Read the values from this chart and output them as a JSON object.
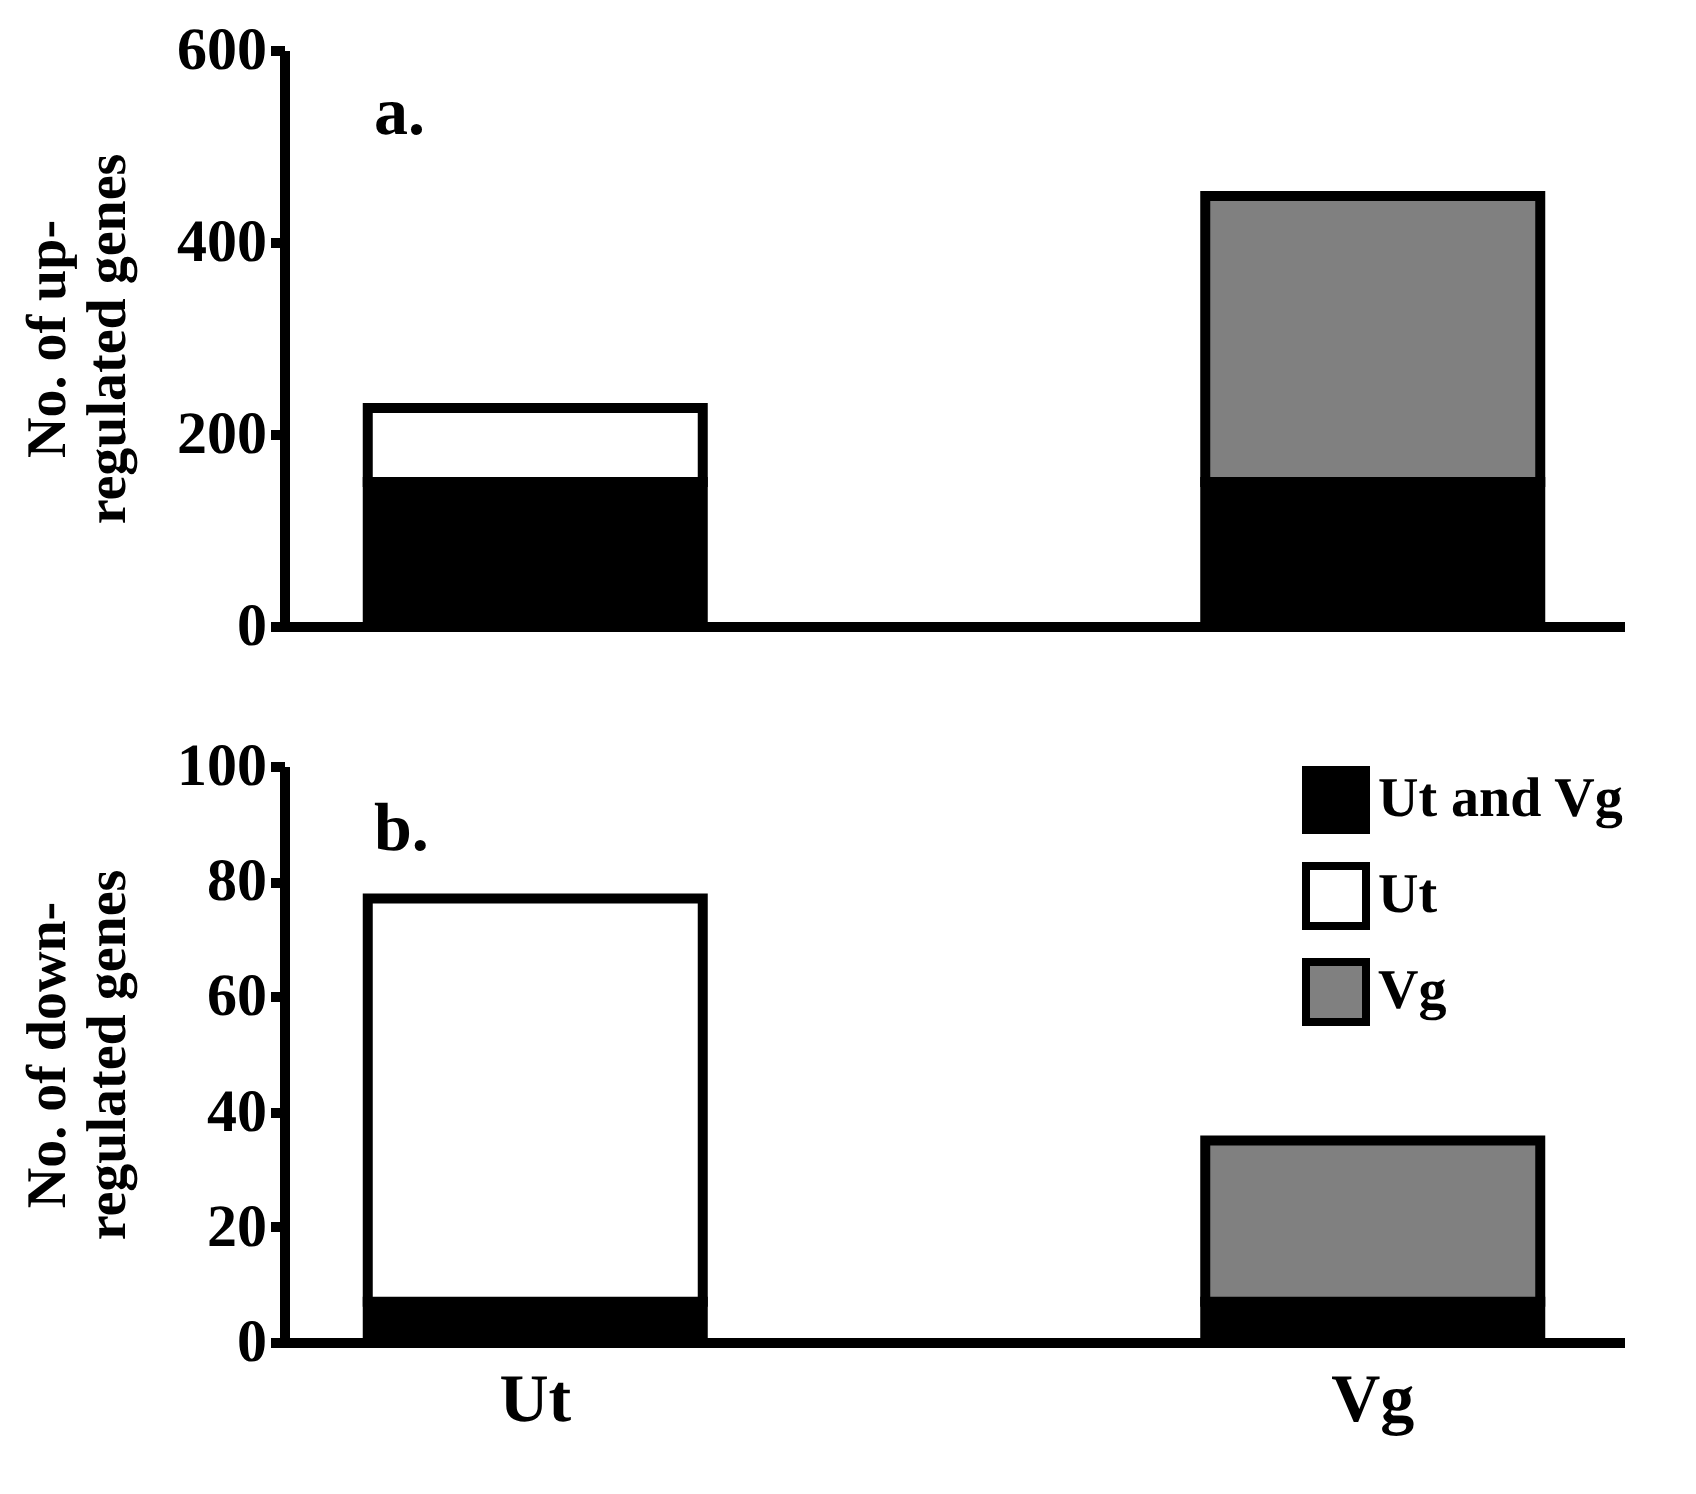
{
  "chart_data": [
    {
      "type": "bar",
      "stacked": true,
      "ylabel": "No. of up-\nregulated  genes",
      "annotations": [
        "a."
      ],
      "categories": [
        null,
        null
      ],
      "series": [
        {
          "color": "#000000",
          "values": [
            150,
            150
          ]
        },
        {
          "color": "#ffffff",
          "values": [
            77,
            null
          ]
        },
        {
          "color": "#808080",
          "values": [
            null,
            298
          ]
        }
      ],
      "ylim": [
        0,
        600
      ],
      "yticks": [
        0,
        200,
        400,
        600
      ],
      "grid": false,
      "legend": false,
      "tick_labels": "y"
    },
    {
      "type": "bar",
      "stacked": true,
      "ylabel": "No. of down-\nregulated  genes",
      "annotations": [
        "b."
      ],
      "categories": [
        "Ut",
        "Vg"
      ],
      "series": [
        {
          "name": "Ut and Vg",
          "color": "#000000",
          "values": [
            7,
            7
          ]
        },
        {
          "name": "Ut",
          "color": "#ffffff",
          "values": [
            70,
            null
          ]
        },
        {
          "name": "Vg",
          "color": "#808080",
          "values": [
            null,
            28
          ]
        }
      ],
      "ylim": [
        0,
        100
      ],
      "yticks": [
        0,
        20,
        40,
        60,
        80,
        100
      ],
      "grid": false,
      "legend": "top right"
    }
  ]
}
